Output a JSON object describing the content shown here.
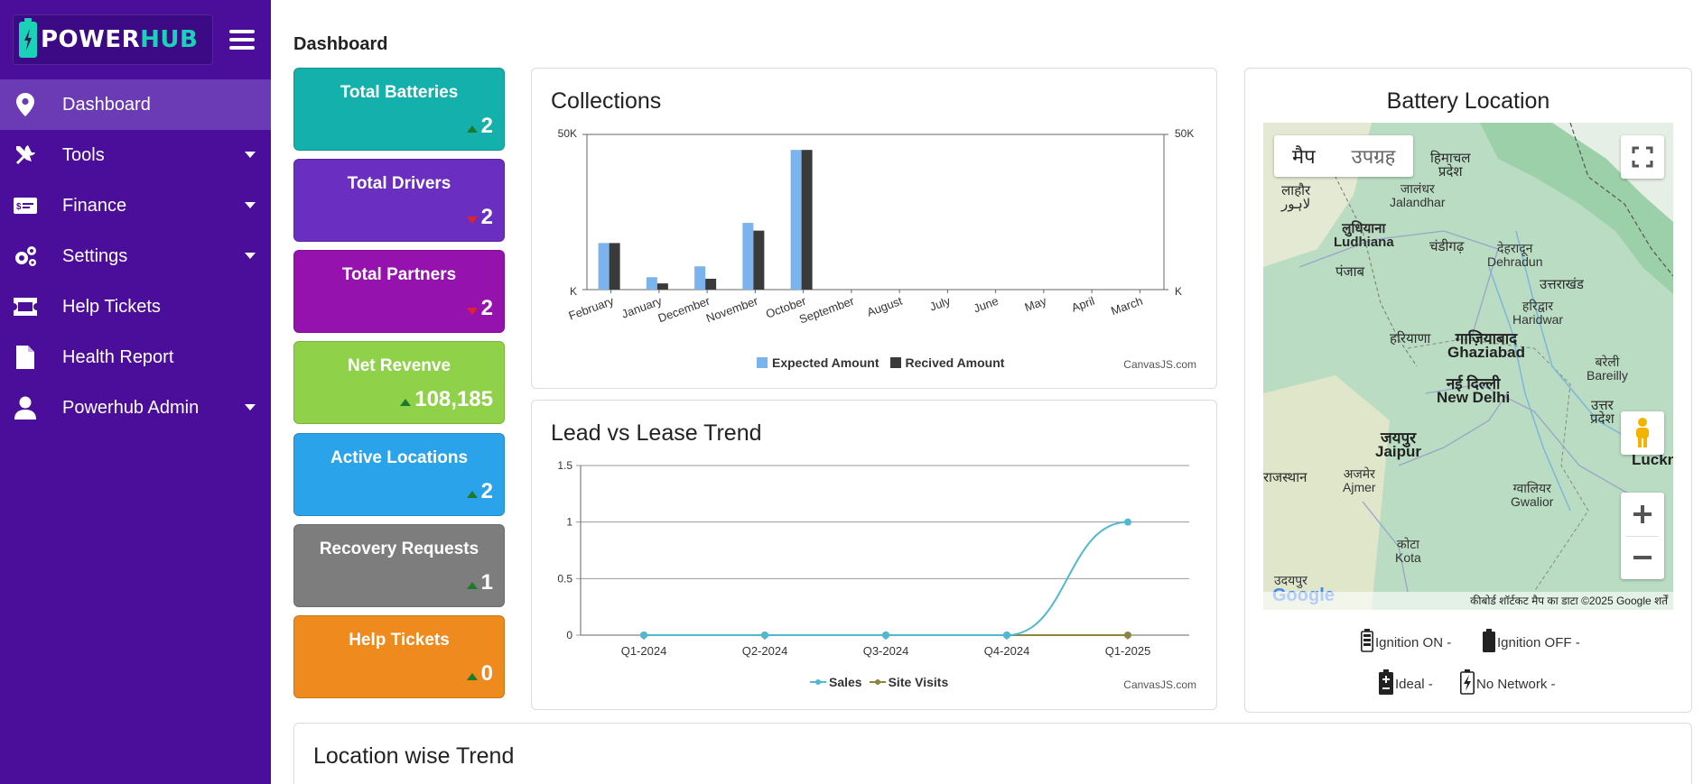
{
  "app": {
    "logo_part1": "POWER",
    "logo_part2": "HUB"
  },
  "sidebar": {
    "items": [
      {
        "label": "Dashboard",
        "icon": "map-marker-icon",
        "active": true
      },
      {
        "label": "Tools",
        "icon": "tools-icon",
        "has_caret": true
      },
      {
        "label": "Finance",
        "icon": "money-icon",
        "has_caret": true
      },
      {
        "label": "Settings",
        "icon": "gears-icon",
        "has_caret": true
      },
      {
        "label": "Help Tickets",
        "icon": "ticket-icon"
      },
      {
        "label": "Health Report",
        "icon": "file-icon"
      },
      {
        "label": "Powerhub Admin",
        "icon": "user-icon",
        "has_caret": true
      }
    ]
  },
  "page": {
    "title": "Dashboard"
  },
  "stats": [
    {
      "label": "Total Batteries",
      "value": "2",
      "trend": "up",
      "color": "#13b0ac"
    },
    {
      "label": "Total Drivers",
      "value": "2",
      "trend": "down",
      "color": "#6a2ec0"
    },
    {
      "label": "Total Partners",
      "value": "2",
      "trend": "down",
      "color": "#9612ae"
    },
    {
      "label": "Net Revenve",
      "value": "108,185",
      "trend": "up",
      "color": "#8fd24a"
    },
    {
      "label": "Active Locations",
      "value": "2",
      "trend": "up",
      "color": "#2aa3ea"
    },
    {
      "label": "Recovery Requests",
      "value": "1",
      "trend": "up",
      "color": "#7d7d7d"
    },
    {
      "label": "Help Tickets",
      "value": "0",
      "trend": "up",
      "color": "#ee8a1e"
    }
  ],
  "collections": {
    "title": "Collections",
    "credit": "CanvasJS.com",
    "y_left_top": "50K",
    "y_left_bottom": "K",
    "y_right_top": "50K",
    "y_right_bottom": "K"
  },
  "lead_trend": {
    "title": "Lead vs Lease Trend",
    "credit": "CanvasJS.com"
  },
  "map": {
    "title": "Battery Location",
    "btn_map": "मैप",
    "btn_satellite": "उपग्रह",
    "footer": "कीबोर्ड शॉर्टकट   मैप का डाटा ©2025 Google   शर्तें",
    "google": "Google",
    "labels": [
      {
        "text": "हिमाचल\nप्रदेश",
        "cls": "med"
      },
      {
        "text": "लाहौर\nلاہور",
        "cls": "med"
      },
      {
        "text": "जालंधर\nJalandhar",
        "cls": ""
      },
      {
        "text": "लुधियाना\nLudhiana",
        "cls": "med"
      },
      {
        "text": "चंडीगढ़",
        "cls": "med"
      },
      {
        "text": "देहरादून\nDehradun",
        "cls": ""
      },
      {
        "text": "पंजाब",
        "cls": "med"
      },
      {
        "text": "उत्तराखंड",
        "cls": "med"
      },
      {
        "text": "हरिद्वार\nHaridwar",
        "cls": ""
      },
      {
        "text": "हरियाणा",
        "cls": "med"
      },
      {
        "text": "गाज़ियाबाद\nGhaziabad",
        "cls": "big"
      },
      {
        "text": "बरेली\nBareilly",
        "cls": ""
      },
      {
        "text": "नई दिल्ली\nNew Delhi",
        "cls": "big"
      },
      {
        "text": "उत्तर\nप्रदेश",
        "cls": "med"
      },
      {
        "text": "जयपुर\nJaipur",
        "cls": "big"
      },
      {
        "text": "राजस्थान",
        "cls": "med"
      },
      {
        "text": "अजमेर\nAjmer",
        "cls": ""
      },
      {
        "text": "ग्वालियर\nGwalior",
        "cls": ""
      },
      {
        "text": "Luckn",
        "cls": "big"
      },
      {
        "text": "कोटा\nKota",
        "cls": ""
      },
      {
        "text": "उदयपुर",
        "cls": ""
      }
    ]
  },
  "battery_legend": [
    {
      "label": "Ignition ON -",
      "icon": "battery-charging-icon"
    },
    {
      "label": "Ignition OFF -",
      "icon": "battery-full-icon"
    },
    {
      "label": "Ideal -",
      "icon": "battery-plus-icon"
    },
    {
      "label": "No Network -",
      "icon": "battery-bolt-icon"
    }
  ],
  "location_trend": {
    "title": "Location wise Trend"
  },
  "chart_data": [
    {
      "type": "bar",
      "title": "Collections",
      "categories": [
        "February",
        "January",
        "December",
        "November",
        "October",
        "September",
        "August",
        "July",
        "June",
        "May",
        "April",
        "March"
      ],
      "series": [
        {
          "name": "Expected Amount",
          "color": "#7bb3ec",
          "values": [
            15000,
            4000,
            7500,
            21500,
            45000,
            0,
            0,
            0,
            0,
            0,
            0,
            0
          ]
        },
        {
          "name": "Recived Amount",
          "color": "#3a3a3a",
          "values": [
            15000,
            2000,
            3500,
            19000,
            45000,
            0,
            0,
            0,
            0,
            0,
            0,
            0
          ]
        }
      ],
      "ylim": [
        0,
        50000
      ],
      "yticks": [
        "K",
        "50K"
      ],
      "grid": false,
      "legend": "bottom"
    },
    {
      "type": "line",
      "title": "Lead vs Lease Trend",
      "categories": [
        "Q1-2024",
        "Q2-2024",
        "Q3-2024",
        "Q4-2024",
        "Q1-2025"
      ],
      "series": [
        {
          "name": "Sales",
          "color": "#4fb8d3",
          "values": [
            0,
            0,
            0,
            0,
            1
          ]
        },
        {
          "name": "Site Visits",
          "color": "#8b8540",
          "values": [
            0,
            0,
            0,
            0,
            0
          ]
        }
      ],
      "ylim": [
        0,
        1.5
      ],
      "yticks": [
        "0",
        "0.5",
        "1",
        "1.5"
      ],
      "grid": true,
      "legend": "bottom"
    }
  ]
}
